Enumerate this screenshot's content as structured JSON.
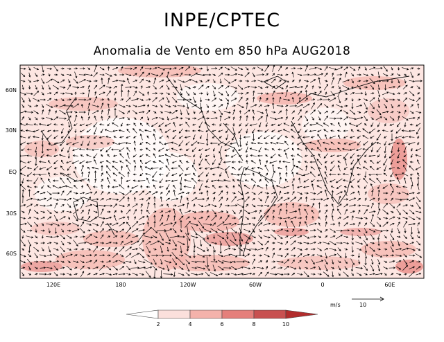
{
  "header": {
    "title": "INPE/CPTEC",
    "subtitle": "Anomalia de Vento em 850 hPa AUG2018"
  },
  "map": {
    "lat_labels": [
      "60N",
      "30N",
      "EQ",
      "30S",
      "60S"
    ],
    "lon_labels": [
      "120E",
      "180",
      "120W",
      "60W",
      "0",
      "60E"
    ]
  },
  "legend": {
    "ticks": [
      "2",
      "4",
      "6",
      "8",
      "10"
    ],
    "colors": [
      "#ffffff",
      "#fbe0dc",
      "#f4b2ab",
      "#e57f7b",
      "#c85050",
      "#b22c2c"
    ]
  },
  "reference_vector": {
    "units": "m/s",
    "magnitude": "10"
  },
  "colors": {
    "background": "#ffffff",
    "map_base": "#fde6e2",
    "shade_light": "#fbd3cd",
    "shade_mid": "#f4b2ab",
    "shade_strong": "#e57f7b"
  }
}
